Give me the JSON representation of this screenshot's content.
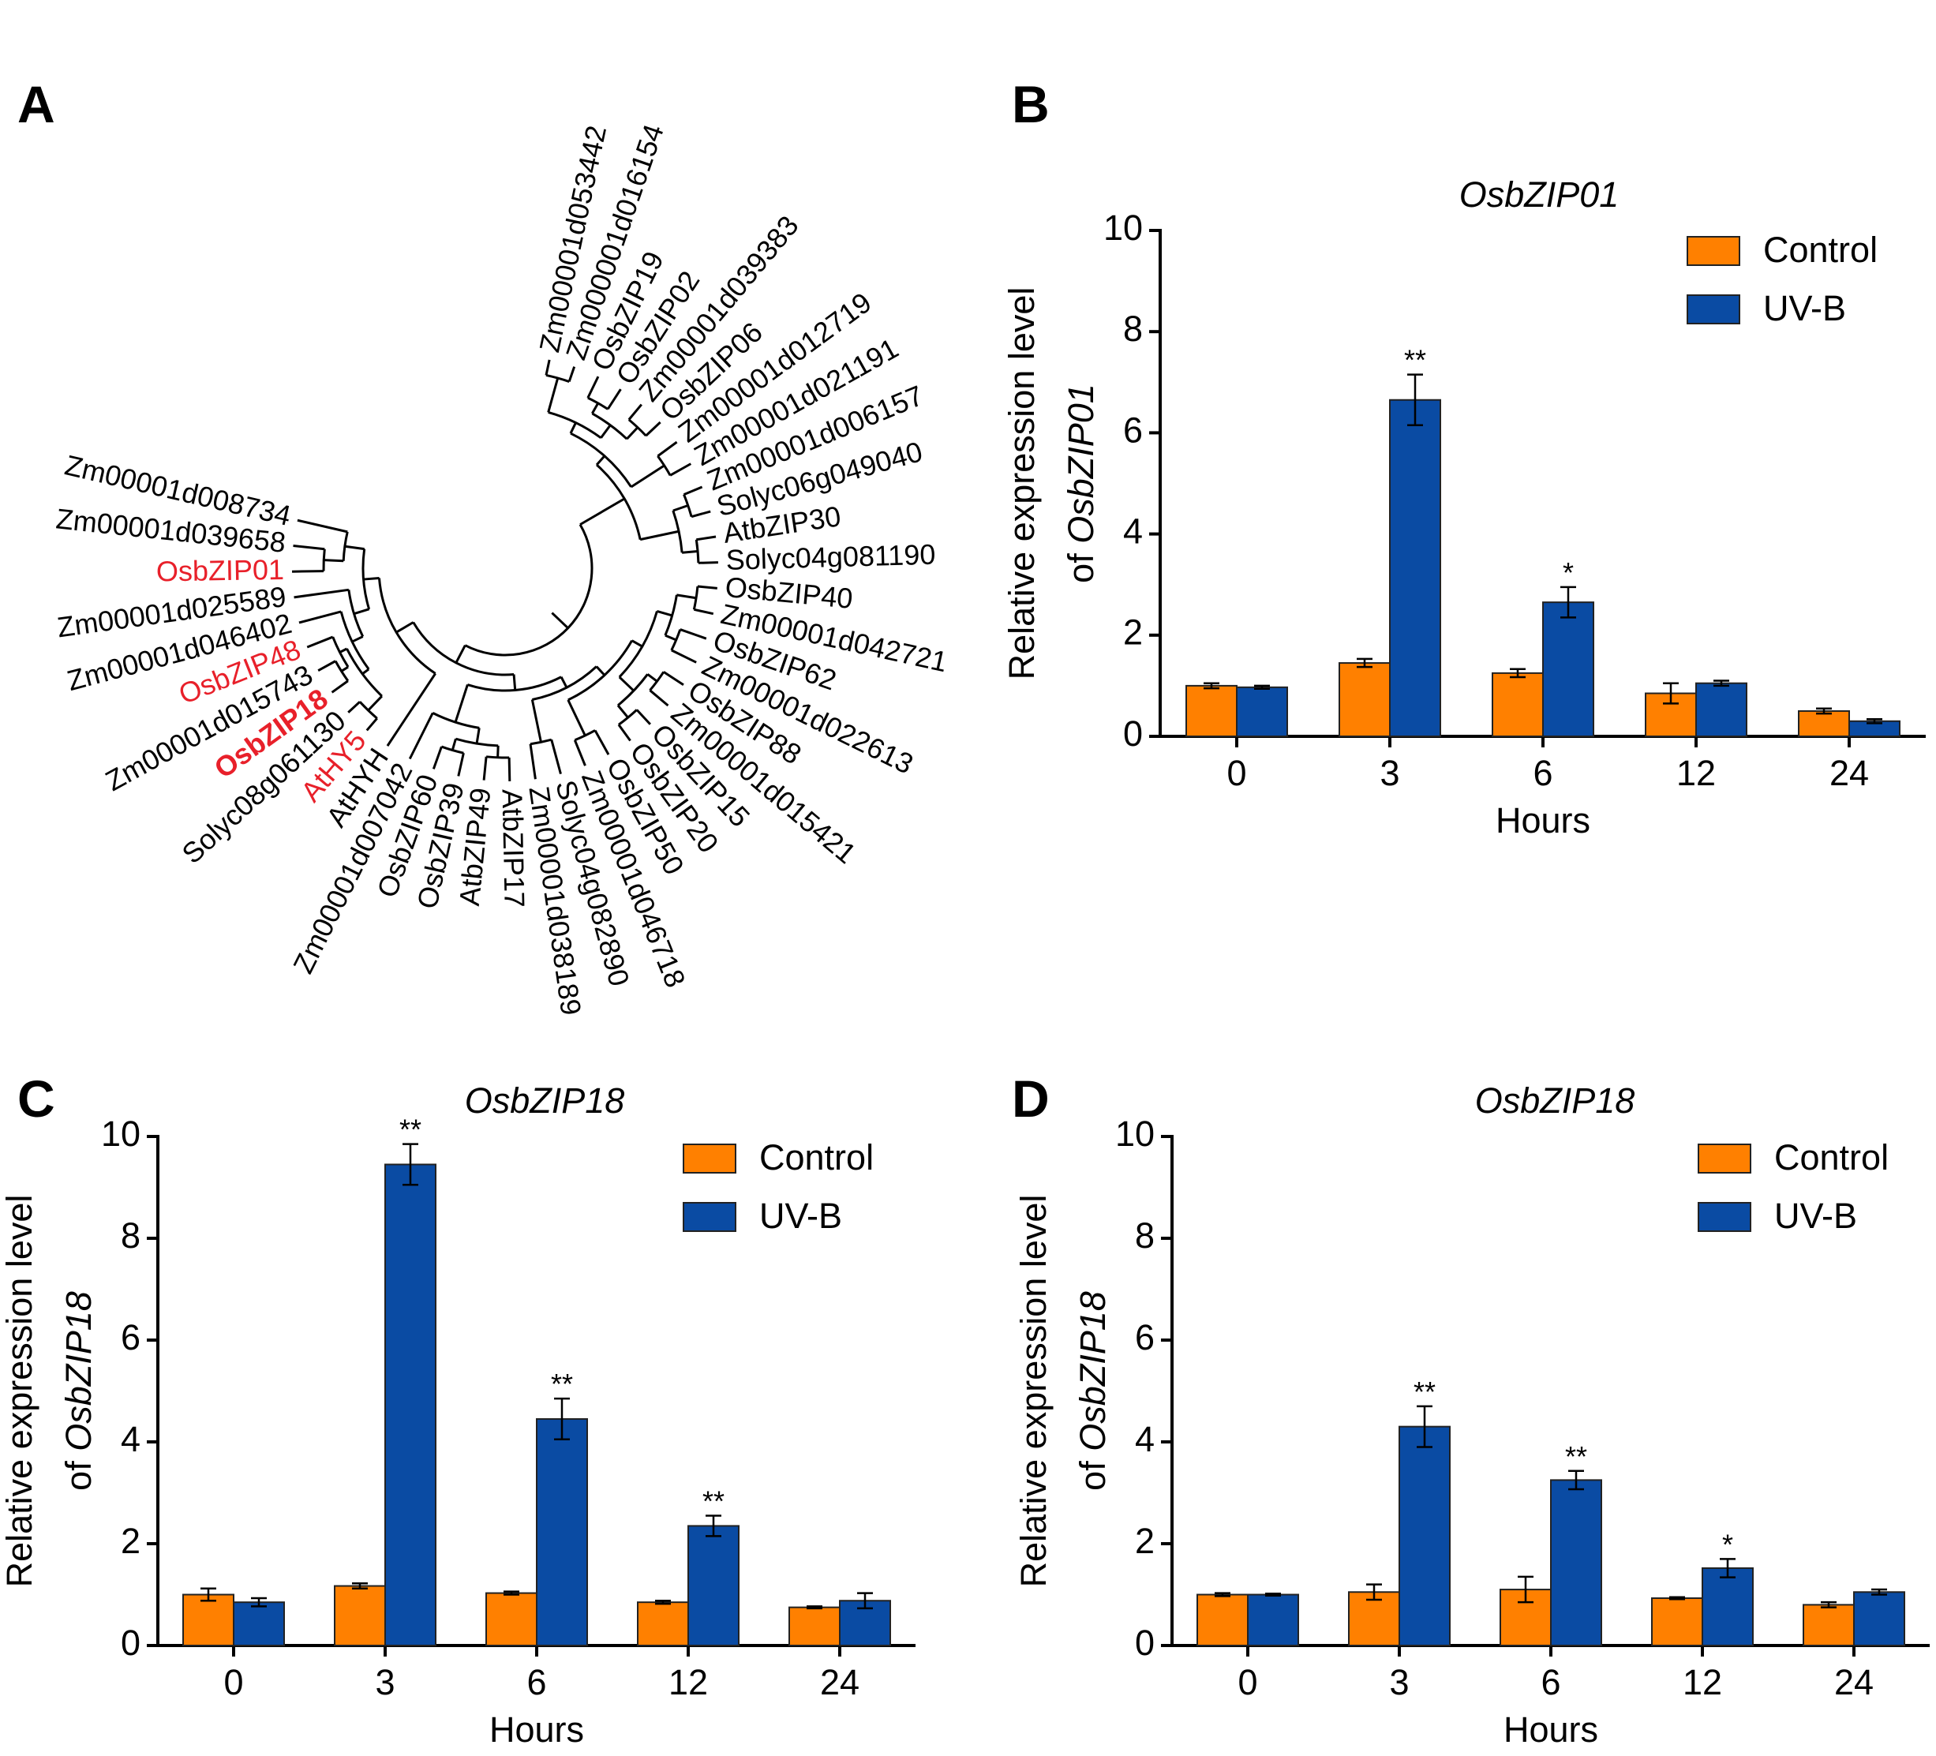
{
  "figure": {
    "panels": [
      "A",
      "B",
      "C",
      "D"
    ]
  },
  "tree": {
    "leaves": [
      {
        "label": "Zm00001d053442",
        "color": "#000000",
        "bold": false
      },
      {
        "label": "Zm000001d016154",
        "color": "#000000",
        "bold": false
      },
      {
        "label": "OsbZIP19",
        "color": "#000000",
        "bold": false
      },
      {
        "label": "OsbZIP02",
        "color": "#000000",
        "bold": false
      },
      {
        "label": "Zm00001d039383",
        "color": "#000000",
        "bold": false
      },
      {
        "label": "OsbZIP06",
        "color": "#000000",
        "bold": false
      },
      {
        "label": "Zm00001d012719",
        "color": "#000000",
        "bold": false
      },
      {
        "label": "Zm00001d021191",
        "color": "#000000",
        "bold": false
      },
      {
        "label": "Zm00001d006157",
        "color": "#000000",
        "bold": false
      },
      {
        "label": "Solyc06g049040",
        "color": "#000000",
        "bold": false
      },
      {
        "label": "AtbZIP30",
        "color": "#000000",
        "bold": false
      },
      {
        "label": "Solyc04g081190",
        "color": "#000000",
        "bold": false
      },
      {
        "label": "OsbZIP40",
        "color": "#000000",
        "bold": false
      },
      {
        "label": "Zm00001d042721",
        "color": "#000000",
        "bold": false
      },
      {
        "label": "OsbZIP62",
        "color": "#000000",
        "bold": false
      },
      {
        "label": "Zm00001d022613",
        "color": "#000000",
        "bold": false
      },
      {
        "label": "OsbZIP88",
        "color": "#000000",
        "bold": false
      },
      {
        "label": "Zm00001d015421",
        "color": "#000000",
        "bold": false
      },
      {
        "label": "OsbZIP15",
        "color": "#000000",
        "bold": false
      },
      {
        "label": "OsbZIP20",
        "color": "#000000",
        "bold": false
      },
      {
        "label": "OsbZIP50",
        "color": "#000000",
        "bold": false
      },
      {
        "label": "Zm00001d046718",
        "color": "#000000",
        "bold": false
      },
      {
        "label": "Solyc04g082890",
        "color": "#000000",
        "bold": false
      },
      {
        "label": "Zm00001d038189",
        "color": "#000000",
        "bold": false
      },
      {
        "label": "AtbZIP17",
        "color": "#000000",
        "bold": false
      },
      {
        "label": "AtbZIP49",
        "color": "#000000",
        "bold": false
      },
      {
        "label": "OsbZIP39",
        "color": "#000000",
        "bold": false
      },
      {
        "label": "OsbZIP60",
        "color": "#000000",
        "bold": false
      },
      {
        "label": "Zm00001d007042",
        "color": "#000000",
        "bold": false
      },
      {
        "label": "AtHYH",
        "color": "#000000",
        "bold": false
      },
      {
        "label": "AtHY5",
        "color": "#e8202a",
        "bold": false
      },
      {
        "label": "Solyc08g061130",
        "color": "#000000",
        "bold": false
      },
      {
        "label": "OsbZIP18",
        "color": "#e8202a",
        "bold": true
      },
      {
        "label": "Zm00001d015743",
        "color": "#000000",
        "bold": false
      },
      {
        "label": "OsbZIP48",
        "color": "#e8202a",
        "bold": false
      },
      {
        "label": "Zm00001d046402",
        "color": "#000000",
        "bold": false
      },
      {
        "label": "Zm00001d025589",
        "color": "#000000",
        "bold": false
      },
      {
        "label": "OsbZIP01",
        "color": "#e8202a",
        "bold": false
      },
      {
        "label": "Zm00001d039658",
        "color": "#000000",
        "bold": false
      },
      {
        "label": "Zm00001d008734",
        "color": "#000000",
        "bold": false
      }
    ]
  },
  "colors": {
    "control": "#ff8000",
    "uvb": "#0a4ba3",
    "highlight": "#e8202a",
    "axis": "#000000"
  },
  "chart_data": [
    {
      "panel": "B",
      "type": "bar",
      "title": "OsbZIP01",
      "xlabel": "Hours",
      "ylabel_line1": "Relative expression level",
      "ylabel_line2_prefix": "of ",
      "ylabel_line2_gene": "OsbZIP01",
      "categories": [
        "0",
        "3",
        "6",
        "12",
        "24"
      ],
      "ylim": [
        0,
        10
      ],
      "yticks": [
        "0",
        "2",
        "4",
        "6",
        "8",
        "10"
      ],
      "legend": [
        "Control",
        "UV-B"
      ],
      "series": [
        {
          "name": "Control",
          "values": [
            1.0,
            1.45,
            1.25,
            0.85,
            0.5
          ],
          "errors": [
            0.05,
            0.08,
            0.08,
            0.2,
            0.05
          ],
          "sig": [
            "",
            "",
            "",
            "",
            ""
          ]
        },
        {
          "name": "UV-B",
          "values": [
            0.97,
            6.65,
            2.65,
            1.05,
            0.3
          ],
          "errors": [
            0.03,
            0.5,
            0.3,
            0.05,
            0.04
          ],
          "sig": [
            "",
            "**",
            "*",
            "",
            ""
          ]
        }
      ]
    },
    {
      "panel": "C",
      "type": "bar",
      "title": "OsbZIP18",
      "xlabel": "Hours",
      "ylabel_line1": "Relative expression level",
      "ylabel_line2_prefix": "of ",
      "ylabel_line2_gene": "OsbZIP18",
      "categories": [
        "0",
        "3",
        "6",
        "12",
        "24"
      ],
      "ylim": [
        0,
        10
      ],
      "yticks": [
        "0",
        "2",
        "4",
        "6",
        "8",
        "10"
      ],
      "legend": [
        "Control",
        "UV-B"
      ],
      "series": [
        {
          "name": "Control",
          "values": [
            1.0,
            1.17,
            1.03,
            0.85,
            0.75
          ],
          "errors": [
            0.12,
            0.05,
            0.03,
            0.03,
            0.02
          ],
          "sig": [
            "",
            "",
            "",
            "",
            ""
          ]
        },
        {
          "name": "UV-B",
          "values": [
            0.85,
            9.45,
            4.45,
            2.35,
            0.88
          ],
          "errors": [
            0.08,
            0.4,
            0.4,
            0.2,
            0.15
          ],
          "sig": [
            "",
            "**",
            "**",
            "**",
            ""
          ]
        }
      ]
    },
    {
      "panel": "D",
      "type": "bar",
      "title": "OsbZIP18",
      "xlabel": "Hours",
      "ylabel_line1": "Relative expression level",
      "ylabel_line2_prefix": "of ",
      "ylabel_line2_gene": "OsbZIP18",
      "categories": [
        "0",
        "3",
        "6",
        "12",
        "24"
      ],
      "ylim": [
        0,
        10
      ],
      "yticks": [
        "0",
        "2",
        "4",
        "6",
        "8",
        "10"
      ],
      "legend": [
        "Control",
        "UV-B"
      ],
      "series": [
        {
          "name": "Control",
          "values": [
            1.0,
            1.05,
            1.1,
            0.93,
            0.8
          ],
          "errors": [
            0.03,
            0.15,
            0.25,
            0.02,
            0.05
          ],
          "sig": [
            "",
            "",
            "",
            "",
            ""
          ]
        },
        {
          "name": "UV-B",
          "values": [
            1.0,
            4.3,
            3.25,
            1.52,
            1.05
          ],
          "errors": [
            0.02,
            0.4,
            0.18,
            0.18,
            0.05
          ],
          "sig": [
            "",
            "**",
            "**",
            "*",
            ""
          ]
        }
      ]
    }
  ]
}
